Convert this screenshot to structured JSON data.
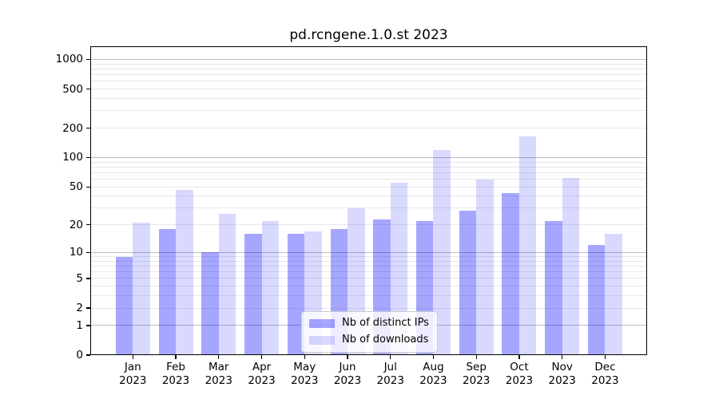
{
  "title": "pd.rcngene.1.0.st 2023",
  "chart_data": {
    "type": "bar",
    "categories": [
      "Jan",
      "Feb",
      "Mar",
      "Apr",
      "May",
      "Jun",
      "Jul",
      "Aug",
      "Sep",
      "Oct",
      "Nov",
      "Dec"
    ],
    "year": "2023",
    "series": [
      {
        "name": "Nb of distinct IPs",
        "color": "#0000ff",
        "alpha": 0.35,
        "values": [
          9,
          18,
          10,
          16,
          16,
          18,
          23,
          22,
          28,
          43,
          22,
          12
        ]
      },
      {
        "name": "Nb of downloads",
        "color": "#0000ff",
        "alpha": 0.15,
        "values": [
          21,
          46,
          26,
          22,
          17,
          30,
          55,
          120,
          60,
          165,
          62,
          16
        ]
      }
    ],
    "yscale": "log1p",
    "ylim": [
      0,
      1300
    ],
    "yticks": [
      0,
      1,
      2,
      5,
      10,
      20,
      50,
      100,
      200,
      500,
      1000
    ],
    "major_gridlines": [
      1,
      10,
      100,
      1000
    ],
    "minor_gridlines": [
      2,
      3,
      4,
      5,
      6,
      7,
      8,
      9,
      20,
      30,
      40,
      50,
      60,
      70,
      80,
      90,
      200,
      300,
      400,
      500,
      600,
      700,
      800,
      900
    ],
    "grid": true,
    "legend_position": "lower center",
    "xlabel": "",
    "ylabel": ""
  }
}
